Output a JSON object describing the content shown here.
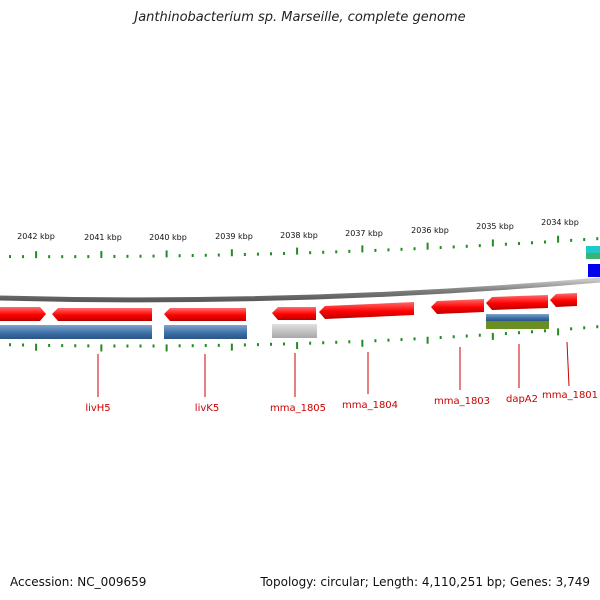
{
  "title": "Janthinobacterium sp. Marseille, complete genome",
  "footer": {
    "accession": "Accession: NC_009659",
    "summary": "Topology: circular; Length: 4,110,251 bp; Genes: 3,749"
  },
  "colors": {
    "forward_gene": "#ff0000",
    "track_blue": "#3a6ea5",
    "track_grey": "#b5b5b5",
    "track_olive": "#6b8e23",
    "backbone": "#808080",
    "ticks": "#228b22",
    "labels": "#cc0000"
  },
  "scale_labels": [
    "2042 kbp",
    "2041 kbp",
    "2040 kbp",
    "2039 kbp",
    "2038 kbp",
    "2037 kbp",
    "2036 kbp",
    "2035 kbp",
    "2034 kbp"
  ],
  "gene_labels": [
    "livH5",
    "livK5",
    "mma_1805",
    "mma_1804",
    "mma_1803",
    "dapA2",
    "mma_1801"
  ]
}
